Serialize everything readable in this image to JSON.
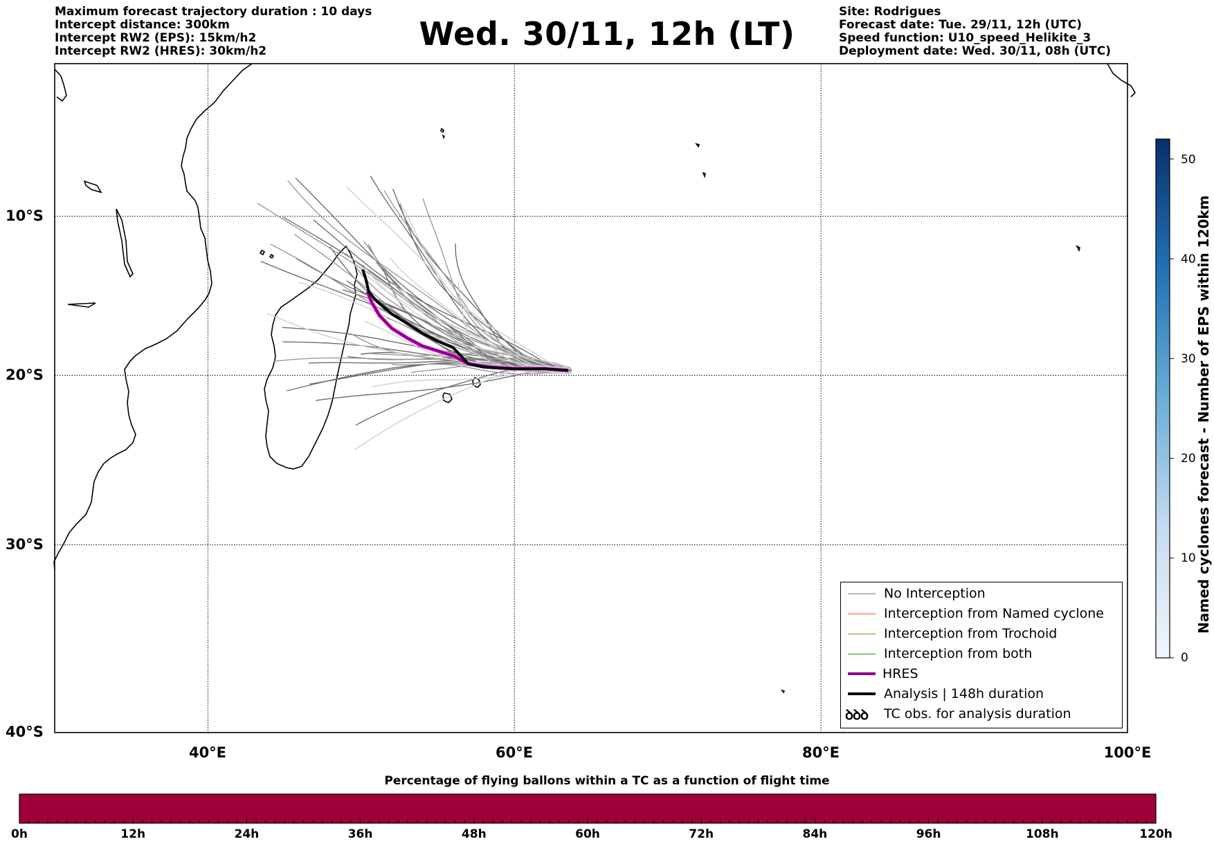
{
  "header_left": [
    "Maximum forecast trajectory duration : 10 days",
    "Intercept distance: 300km",
    "Intercept RW2 (EPS):  15km/h2",
    "Intercept RW2 (HRES): 30km/h2"
  ],
  "header_right": [
    "Site: Rodrigues",
    "Forecast date: Tue. 29/11, 12h (UTC)",
    "Speed function: U10_speed_Helikite_3",
    "Deployment date: Wed. 30/11, 08h (UTC)"
  ],
  "title": "Wed. 30/11, 12h (LT)",
  "map": {
    "lat_labels": [
      "10°S",
      "20°S",
      "30°S",
      "40°S"
    ],
    "lon_labels": [
      "40°E",
      "60°E",
      "80°E",
      "100°E"
    ],
    "lon_range": [
      30,
      100
    ],
    "lat_range": [
      -40,
      -0.1
    ],
    "grid": true,
    "release_point": {
      "lon": 63.5,
      "lat": -19.7
    },
    "hres_track": [
      [
        63.5,
        -19.7
      ],
      [
        62,
        -19.6
      ],
      [
        60,
        -19.6
      ],
      [
        58.5,
        -19.5
      ],
      [
        57,
        -19.3
      ],
      [
        56,
        -18.8
      ],
      [
        55,
        -18.5
      ],
      [
        54,
        -18.2
      ],
      [
        53,
        -17.7
      ],
      [
        52,
        -17.1
      ],
      [
        51.2,
        -16.3
      ],
      [
        50.7,
        -15.5
      ],
      [
        50.4,
        -14.8
      ]
    ],
    "analysis_track": [
      [
        63.5,
        -19.7
      ],
      [
        62,
        -19.6
      ],
      [
        60,
        -19.6
      ],
      [
        58,
        -19.5
      ],
      [
        57,
        -19.3
      ],
      [
        56.5,
        -18.8
      ],
      [
        56,
        -18.3
      ],
      [
        55,
        -17.9
      ],
      [
        54,
        -17.4
      ],
      [
        53,
        -16.8
      ],
      [
        52,
        -16.2
      ],
      [
        51,
        -15.4
      ],
      [
        50.5,
        -14.8
      ],
      [
        50.3,
        -14.0
      ],
      [
        50.1,
        -13.4
      ]
    ]
  },
  "colorbar_right": {
    "label": "Named cyclones forecast - Number of EPS within 120km",
    "ticks": [
      "0",
      "10",
      "20",
      "30",
      "40",
      "50"
    ],
    "range": [
      0,
      52
    ]
  },
  "legend": [
    {
      "label": "No Interception",
      "color": "#808080",
      "style": "thin"
    },
    {
      "label": "Interception from Named cyclone",
      "color": "#ff5a1f",
      "style": "thin"
    },
    {
      "label": "Interception from Trochoid",
      "color": "#8c7d1e",
      "style": "thin"
    },
    {
      "label": "Interception from both",
      "color": "#1e8c1e",
      "style": "thin"
    },
    {
      "label": "HRES",
      "color": "#8b008b",
      "style": "thick"
    },
    {
      "label": "Analysis | 148h duration",
      "color": "#000000",
      "style": "thick"
    },
    {
      "label": "TC obs. for analysis duration",
      "color": "#000000",
      "style": "symbol",
      "symbol": "ꝺꝺꝺ"
    }
  ],
  "bottom_bar": {
    "title": "Percentage of flying ballons within a TC as a function of flight time",
    "ticks": [
      "0h",
      "12h",
      "24h",
      "36h",
      "48h",
      "60h",
      "72h",
      "84h",
      "96h",
      "108h",
      "120h"
    ],
    "color": "#9e003a"
  }
}
